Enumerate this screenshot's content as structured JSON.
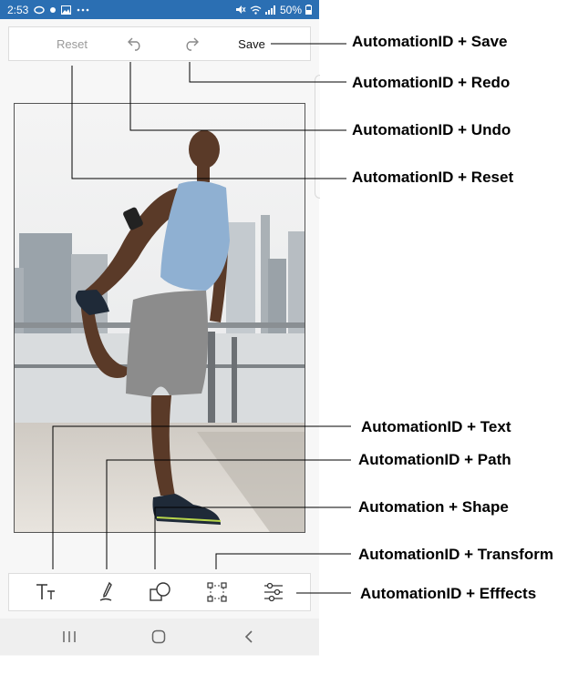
{
  "status_bar": {
    "time": "2:53",
    "battery": "50%"
  },
  "toolbar_top": {
    "reset": "Reset",
    "save": "Save"
  },
  "annotations": {
    "save": "AutomationID + Save",
    "redo": "AutomationID + Redo",
    "undo": "AutomationID + Undo",
    "reset": "AutomationID + Reset",
    "text": "AutomationID + Text",
    "path": "AutomationID + Path",
    "shape": "Automation + Shape",
    "transform": "AutomationID + Transform",
    "effects": "AutomationID + Efffects"
  },
  "colors": {
    "status_bar": "#2b6fb3",
    "disabled_text": "#9a9a9a",
    "icon": "#333333"
  }
}
